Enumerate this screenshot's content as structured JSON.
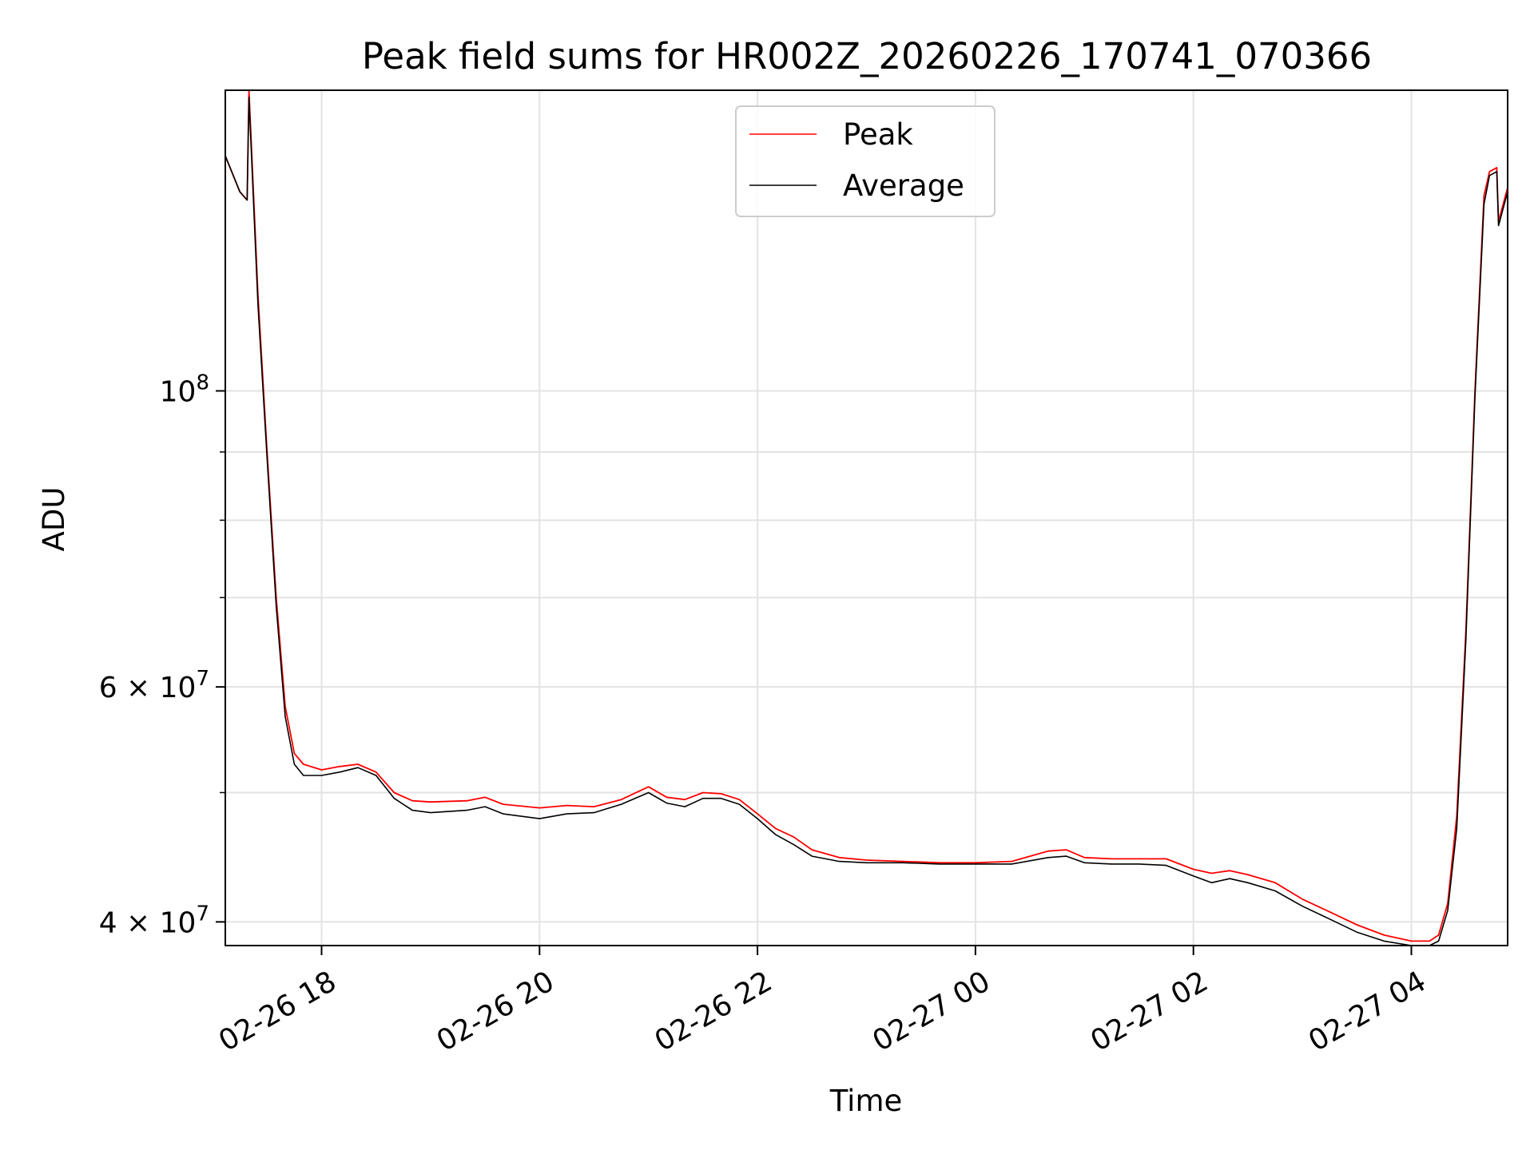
{
  "chart_data": {
    "type": "line",
    "title": "Peak field sums for HR002Z_20260226_170741_070366",
    "xlabel": "Time",
    "ylabel": "ADU",
    "y_scale": "log",
    "grid": true,
    "legend_position": "top-center",
    "xlim": [
      "2026-02-26 17:07",
      "2026-02-27 04:53"
    ],
    "ylim": [
      38400000,
      168000000
    ],
    "x_ticks": [
      {
        "value": "2026-02-26 18:00",
        "label": "02-26 18"
      },
      {
        "value": "2026-02-26 20:00",
        "label": "02-26 20"
      },
      {
        "value": "2026-02-26 22:00",
        "label": "02-26 22"
      },
      {
        "value": "2026-02-27 00:00",
        "label": "02-27 00"
      },
      {
        "value": "2026-02-27 02:00",
        "label": "02-27 02"
      },
      {
        "value": "2026-02-27 04:00",
        "label": "02-27 04"
      }
    ],
    "y_major_ticks": [
      {
        "value": 40000000,
        "base": "4",
        "mantissa": "4",
        "exponent": "7",
        "label": "4 × 10^7"
      },
      {
        "value": 60000000,
        "base": "6",
        "mantissa": "6",
        "exponent": "7",
        "label": "6 × 10^7"
      },
      {
        "value": 100000000,
        "base": "10",
        "exponent": "8",
        "label": "10^8"
      }
    ],
    "y_minor_ticks": [
      50000000,
      70000000,
      80000000,
      90000000
    ],
    "series": [
      {
        "name": "Peak",
        "color": "#ff0000",
        "x": [
          "2026-02-26 17:07",
          "2026-02-26 17:15",
          "2026-02-26 17:19",
          "2026-02-26 17:20",
          "2026-02-26 17:25",
          "2026-02-26 17:30",
          "2026-02-26 17:35",
          "2026-02-26 17:40",
          "2026-02-26 17:45",
          "2026-02-26 17:50",
          "2026-02-26 18:00",
          "2026-02-26 18:10",
          "2026-02-26 18:20",
          "2026-02-26 18:30",
          "2026-02-26 18:40",
          "2026-02-26 18:50",
          "2026-02-26 19:00",
          "2026-02-26 19:20",
          "2026-02-26 19:30",
          "2026-02-26 19:40",
          "2026-02-26 20:00",
          "2026-02-26 20:15",
          "2026-02-26 20:30",
          "2026-02-26 20:45",
          "2026-02-26 21:00",
          "2026-02-26 21:10",
          "2026-02-26 21:20",
          "2026-02-26 21:30",
          "2026-02-26 21:40",
          "2026-02-26 21:50",
          "2026-02-26 22:00",
          "2026-02-26 22:10",
          "2026-02-26 22:20",
          "2026-02-26 22:30",
          "2026-02-26 22:45",
          "2026-02-26 23:00",
          "2026-02-26 23:20",
          "2026-02-26 23:40",
          "2026-02-27 00:00",
          "2026-02-27 00:20",
          "2026-02-27 00:40",
          "2026-02-27 00:50",
          "2026-02-27 01:00",
          "2026-02-27 01:15",
          "2026-02-27 01:30",
          "2026-02-27 01:45",
          "2026-02-27 02:00",
          "2026-02-27 02:10",
          "2026-02-27 02:20",
          "2026-02-27 02:30",
          "2026-02-27 02:45",
          "2026-02-27 03:00",
          "2026-02-27 03:15",
          "2026-02-27 03:30",
          "2026-02-27 03:45",
          "2026-02-27 04:00",
          "2026-02-27 04:10",
          "2026-02-27 04:15",
          "2026-02-27 04:20",
          "2026-02-27 04:25",
          "2026-02-27 04:30",
          "2026-02-27 04:35",
          "2026-02-27 04:40",
          "2026-02-27 04:43",
          "2026-02-27 04:47",
          "2026-02-27 04:48",
          "2026-02-27 04:53"
        ],
        "y": [
          150000000,
          141000000,
          139000000,
          168000000,
          118000000,
          90000000,
          70000000,
          58000000,
          53500000,
          52500000,
          52000000,
          52300000,
          52500000,
          51800000,
          50000000,
          49300000,
          49200000,
          49300000,
          49600000,
          49000000,
          48700000,
          48900000,
          48800000,
          49400000,
          50500000,
          49600000,
          49400000,
          50000000,
          49900000,
          49400000,
          48200000,
          47000000,
          46300000,
          45300000,
          44700000,
          44500000,
          44400000,
          44300000,
          44300000,
          44400000,
          45200000,
          45300000,
          44700000,
          44600000,
          44600000,
          44600000,
          43800000,
          43500000,
          43700000,
          43400000,
          42800000,
          41600000,
          40700000,
          39800000,
          39100000,
          38700000,
          38700000,
          39100000,
          41300000,
          48000000,
          66000000,
          100000000,
          140000000,
          146000000,
          147000000,
          134000000,
          142000000
        ]
      },
      {
        "name": "Average",
        "color": "#000000",
        "x": [
          "2026-02-26 17:07",
          "2026-02-26 17:15",
          "2026-02-26 17:19",
          "2026-02-26 17:20",
          "2026-02-26 17:25",
          "2026-02-26 17:30",
          "2026-02-26 17:35",
          "2026-02-26 17:40",
          "2026-02-26 17:45",
          "2026-02-26 17:50",
          "2026-02-26 18:00",
          "2026-02-26 18:10",
          "2026-02-26 18:20",
          "2026-02-26 18:30",
          "2026-02-26 18:40",
          "2026-02-26 18:50",
          "2026-02-26 19:00",
          "2026-02-26 19:20",
          "2026-02-26 19:30",
          "2026-02-26 19:40",
          "2026-02-26 20:00",
          "2026-02-26 20:15",
          "2026-02-26 20:30",
          "2026-02-26 20:45",
          "2026-02-26 21:00",
          "2026-02-26 21:10",
          "2026-02-26 21:20",
          "2026-02-26 21:30",
          "2026-02-26 21:40",
          "2026-02-26 21:50",
          "2026-02-26 22:00",
          "2026-02-26 22:10",
          "2026-02-26 22:20",
          "2026-02-26 22:30",
          "2026-02-26 22:45",
          "2026-02-26 23:00",
          "2026-02-26 23:20",
          "2026-02-26 23:40",
          "2026-02-27 00:00",
          "2026-02-27 00:20",
          "2026-02-27 00:40",
          "2026-02-27 00:50",
          "2026-02-27 01:00",
          "2026-02-27 01:15",
          "2026-02-27 01:30",
          "2026-02-27 01:45",
          "2026-02-27 02:00",
          "2026-02-27 02:10",
          "2026-02-27 02:20",
          "2026-02-27 02:30",
          "2026-02-27 02:45",
          "2026-02-27 03:00",
          "2026-02-27 03:15",
          "2026-02-27 03:30",
          "2026-02-27 03:45",
          "2026-02-27 04:00",
          "2026-02-27 04:10",
          "2026-02-27 04:15",
          "2026-02-27 04:20",
          "2026-02-27 04:25",
          "2026-02-27 04:30",
          "2026-02-27 04:35",
          "2026-02-27 04:40",
          "2026-02-27 04:43",
          "2026-02-27 04:47",
          "2026-02-27 04:48",
          "2026-02-27 04:53"
        ],
        "y": [
          150000000,
          141000000,
          139000000,
          166000000,
          116000000,
          89000000,
          69000000,
          57000000,
          52500000,
          51500000,
          51500000,
          51800000,
          52200000,
          51500000,
          49500000,
          48500000,
          48300000,
          48500000,
          48800000,
          48200000,
          47800000,
          48200000,
          48300000,
          49000000,
          50000000,
          49100000,
          48800000,
          49500000,
          49500000,
          49000000,
          47800000,
          46500000,
          45700000,
          44800000,
          44400000,
          44300000,
          44300000,
          44200000,
          44200000,
          44200000,
          44700000,
          44800000,
          44300000,
          44200000,
          44200000,
          44100000,
          43300000,
          42800000,
          43100000,
          42800000,
          42200000,
          41100000,
          40200000,
          39300000,
          38700000,
          38400000,
          38400000,
          38700000,
          40800000,
          47000000,
          65000000,
          99000000,
          138000000,
          145000000,
          146000000,
          133000000,
          141000000
        ]
      }
    ]
  }
}
